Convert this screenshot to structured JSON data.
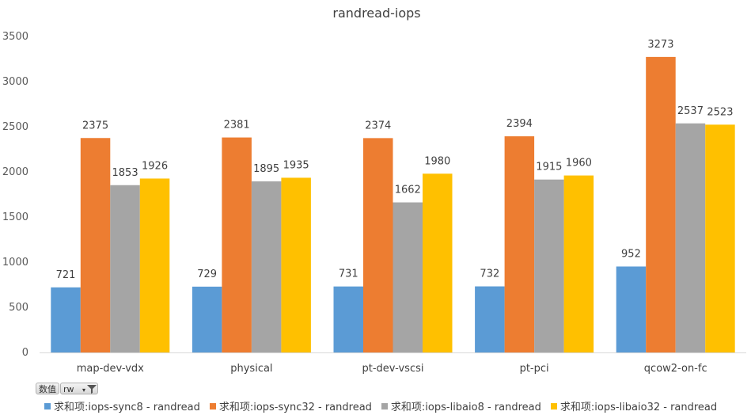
{
  "chart_data": {
    "type": "bar",
    "title": "randread-iops",
    "categories": [
      "map-dev-vdx",
      "physical",
      "pt-dev-vscsi",
      "pt-pci",
      "qcow2-on-fc"
    ],
    "series": [
      {
        "name": "求和项:iops-sync8 - randread",
        "color": "#5B9BD5",
        "values": [
          721,
          729,
          731,
          732,
          952
        ]
      },
      {
        "name": "求和项:iops-sync32 - randread",
        "color": "#ED7D31",
        "values": [
          2375,
          2381,
          2374,
          2394,
          3273
        ]
      },
      {
        "name": "求和项:iops-libaio8 - randread",
        "color": "#A5A5A5",
        "values": [
          1853,
          1895,
          1662,
          1915,
          2537
        ]
      },
      {
        "name": "求和项:iops-libaio32 - randread",
        "color": "#FFC000",
        "values": [
          1926,
          1935,
          1980,
          1960,
          2523
        ]
      }
    ],
    "ylim": [
      0,
      3500
    ],
    "yticks": [
      0,
      500,
      1000,
      1500,
      2000,
      2500,
      3000,
      3500
    ],
    "grid": false,
    "legend": "bottom"
  },
  "pivot_buttons": {
    "values_label": "数值",
    "field_label": "rw",
    "dropdown_glyph": "▾"
  }
}
